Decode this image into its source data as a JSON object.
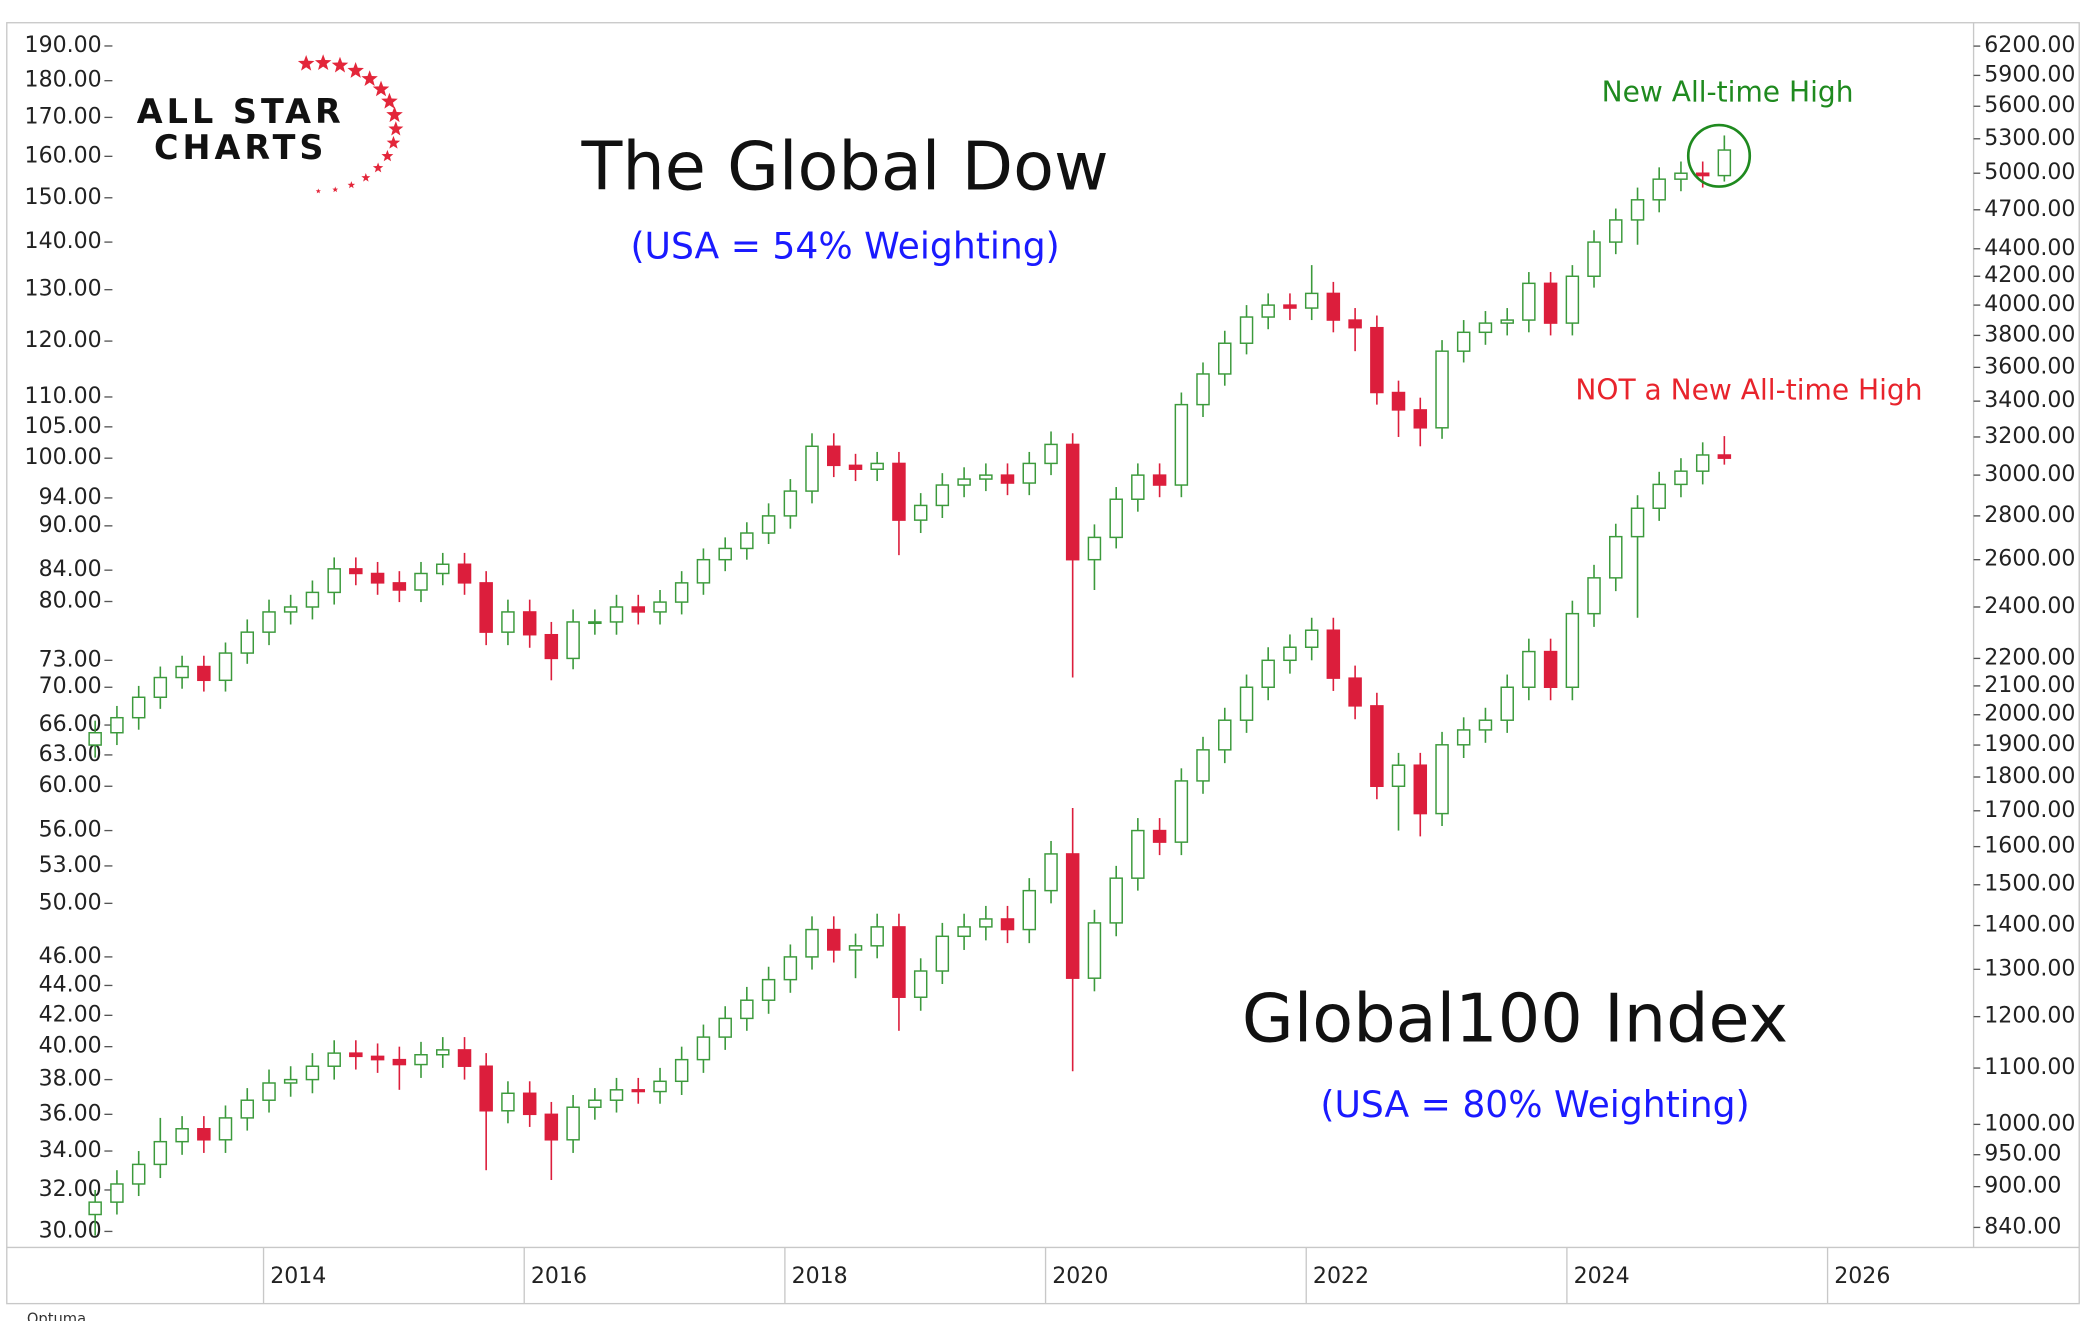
{
  "chart_data": {
    "type": "candlestick",
    "log_scale": true,
    "grid": false,
    "logo": [
      "ALL STAR",
      "CHARTS"
    ],
    "watermark": "Optuma",
    "annotations": [
      {
        "text": "New All-time High",
        "color": "#1f8a1f"
      },
      {
        "text": "NOT a New All-time High",
        "color": "#e8242c"
      }
    ],
    "x": [
      2012.708,
      2012.875,
      2013.042,
      2013.208,
      2013.375,
      2013.542,
      2013.708,
      2013.875,
      2014.042,
      2014.208,
      2014.375,
      2014.542,
      2014.708,
      2014.875,
      2015.042,
      2015.208,
      2015.375,
      2015.542,
      2015.708,
      2015.875,
      2016.042,
      2016.208,
      2016.375,
      2016.542,
      2016.708,
      2016.875,
      2017.042,
      2017.208,
      2017.375,
      2017.542,
      2017.708,
      2017.875,
      2018.042,
      2018.208,
      2018.375,
      2018.542,
      2018.708,
      2018.875,
      2019.042,
      2019.208,
      2019.375,
      2019.542,
      2019.708,
      2019.875,
      2020.042,
      2020.208,
      2020.375,
      2020.542,
      2020.708,
      2020.875,
      2021.042,
      2021.208,
      2021.375,
      2021.542,
      2021.708,
      2021.875,
      2022.042,
      2022.208,
      2022.375,
      2022.542,
      2022.708,
      2022.875,
      2023.042,
      2023.208,
      2023.375,
      2023.542,
      2023.708,
      2023.875,
      2024.042,
      2024.208,
      2024.375,
      2024.542,
      2024.708,
      2024.875,
      2025.042,
      2025.208
    ],
    "xlim": [
      2012.03,
      2027.11
    ],
    "xticks": [
      2014,
      2016,
      2018,
      2020,
      2022,
      2024,
      2026
    ],
    "ylim": [
      29.26,
      197
    ],
    "yticks": [
      {
        "value": 190,
        "label": "190.00"
      },
      {
        "value": 180,
        "label": "180.00"
      },
      {
        "value": 170,
        "label": "170.00"
      },
      {
        "value": 160,
        "label": "160.00"
      },
      {
        "value": 150,
        "label": "150.00"
      },
      {
        "value": 140,
        "label": "140.00"
      },
      {
        "value": 130,
        "label": "130.00"
      },
      {
        "value": 120,
        "label": "120.00"
      },
      {
        "value": 110,
        "label": "110.00"
      },
      {
        "value": 105,
        "label": "105.00"
      },
      {
        "value": 100,
        "label": "100.00"
      },
      {
        "value": 94,
        "label": "94.00"
      },
      {
        "value": 90,
        "label": "90.00"
      },
      {
        "value": 84,
        "label": "84.00"
      },
      {
        "value": 80,
        "label": "80.00"
      },
      {
        "value": 73,
        "label": "73.00"
      },
      {
        "value": 70,
        "label": "70.00"
      },
      {
        "value": 66,
        "label": "66.00"
      },
      {
        "value": 63,
        "label": "63.00"
      },
      {
        "value": 60,
        "label": "60.00"
      },
      {
        "value": 56,
        "label": "56.00"
      },
      {
        "value": 53,
        "label": "53.00"
      },
      {
        "value": 50,
        "label": "50.00"
      },
      {
        "value": 46,
        "label": "46.00"
      },
      {
        "value": 44,
        "label": "44.00"
      },
      {
        "value": 42,
        "label": "42.00"
      },
      {
        "value": 40,
        "label": "40.00"
      },
      {
        "value": 38,
        "label": "38.00"
      },
      {
        "value": 36,
        "label": "36.00"
      },
      {
        "value": 34,
        "label": "34.00"
      },
      {
        "value": 32,
        "label": "32.00"
      },
      {
        "value": 30,
        "label": "30.00"
      }
    ],
    "y2lim": [
      812,
      6450
    ],
    "y2ticks": [
      {
        "value": 6200,
        "label": "6200.00"
      },
      {
        "value": 5900,
        "label": "5900.00"
      },
      {
        "value": 5600,
        "label": "5600.00"
      },
      {
        "value": 5300,
        "label": "5300.00"
      },
      {
        "value": 5000,
        "label": "5000.00"
      },
      {
        "value": 4700,
        "label": "4700.00"
      },
      {
        "value": 4400,
        "label": "4400.00"
      },
      {
        "value": 4200,
        "label": "4200.00"
      },
      {
        "value": 4000,
        "label": "4000.00"
      },
      {
        "value": 3800,
        "label": "3800.00"
      },
      {
        "value": 3600,
        "label": "3600.00"
      },
      {
        "value": 3400,
        "label": "3400.00"
      },
      {
        "value": 3200,
        "label": "3200.00"
      },
      {
        "value": 3000,
        "label": "3000.00"
      },
      {
        "value": 2800,
        "label": "2800.00"
      },
      {
        "value": 2600,
        "label": "2600.00"
      },
      {
        "value": 2400,
        "label": "2400.00"
      },
      {
        "value": 2200,
        "label": "2200.00"
      },
      {
        "value": 2100,
        "label": "2100.00"
      },
      {
        "value": 2000,
        "label": "2000.00"
      },
      {
        "value": 1900,
        "label": "1900.00"
      },
      {
        "value": 1800,
        "label": "1800.00"
      },
      {
        "value": 1700,
        "label": "1700.00"
      },
      {
        "value": 1600,
        "label": "1600.00"
      },
      {
        "value": 1500,
        "label": "1500.00"
      },
      {
        "value": 1400,
        "label": "1400.00"
      },
      {
        "value": 1300,
        "label": "1300.00"
      },
      {
        "value": 1200,
        "label": "1200.00"
      },
      {
        "value": 1100,
        "label": "1100.00"
      },
      {
        "value": 1000,
        "label": "1000.00"
      },
      {
        "value": 950,
        "label": "950.00"
      },
      {
        "value": 900,
        "label": "900.00"
      },
      {
        "value": 840,
        "label": "840.00"
      }
    ],
    "up_color": "#3c9a3c",
    "down_color": "#dc1e3c",
    "series": [
      {
        "name": "The Global Dow",
        "annotation": "(USA = 54% Weighting)",
        "axis": "y2",
        "open": [
          1900,
          1940,
          1990,
          2060,
          2130,
          2170,
          2120,
          2220,
          2300,
          2380,
          2400,
          2460,
          2560,
          2540,
          2500,
          2470,
          2540,
          2580,
          2500,
          2300,
          2380,
          2290,
          2200,
          2340,
          2340,
          2400,
          2380,
          2420,
          2500,
          2600,
          2650,
          2720,
          2800,
          2920,
          3150,
          3050,
          3030,
          3060,
          2780,
          2850,
          2950,
          2980,
          3000,
          2960,
          3060,
          3160,
          2600,
          2700,
          2880,
          3000,
          2950,
          3380,
          3560,
          3750,
          3920,
          4000,
          3980,
          4080,
          3900,
          3850,
          3450,
          3350,
          3250,
          3700,
          3820,
          3880,
          3900,
          4150,
          3880,
          4200,
          4450,
          4620,
          4780,
          4950,
          5000,
          4980
        ],
        "high": [
          1980,
          2030,
          2100,
          2170,
          2210,
          2210,
          2260,
          2350,
          2430,
          2450,
          2510,
          2610,
          2610,
          2590,
          2550,
          2590,
          2630,
          2630,
          2550,
          2430,
          2430,
          2340,
          2390,
          2390,
          2450,
          2450,
          2470,
          2550,
          2650,
          2700,
          2770,
          2860,
          2980,
          3220,
          3220,
          3110,
          3120,
          3120,
          2910,
          3010,
          3040,
          3060,
          3060,
          3120,
          3230,
          3220,
          2760,
          2940,
          3060,
          3060,
          3450,
          3630,
          3830,
          4000,
          4080,
          4080,
          4280,
          4160,
          3980,
          3930,
          3520,
          3420,
          3770,
          3900,
          3960,
          3980,
          4230,
          4230,
          4280,
          4540,
          4710,
          4880,
          5050,
          5100,
          5100,
          5330
        ],
        "low": [
          1860,
          1900,
          1950,
          2020,
          2090,
          2080,
          2080,
          2180,
          2250,
          2330,
          2350,
          2410,
          2490,
          2450,
          2420,
          2420,
          2490,
          2450,
          2250,
          2250,
          2240,
          2120,
          2160,
          2290,
          2290,
          2330,
          2330,
          2370,
          2450,
          2550,
          2600,
          2670,
          2740,
          2860,
          2990,
          2970,
          2970,
          2620,
          2720,
          2790,
          2890,
          2920,
          2900,
          2900,
          3000,
          2130,
          2470,
          2650,
          2820,
          2890,
          2890,
          3310,
          3490,
          3680,
          3840,
          3900,
          3900,
          3820,
          3700,
          3380,
          3200,
          3150,
          3190,
          3630,
          3740,
          3800,
          3820,
          3800,
          3800,
          4120,
          4360,
          4430,
          4680,
          4850,
          4880,
          4930
        ],
        "close": [
          1940,
          1990,
          2060,
          2130,
          2170,
          2120,
          2220,
          2300,
          2380,
          2400,
          2460,
          2560,
          2540,
          2500,
          2470,
          2540,
          2580,
          2500,
          2300,
          2380,
          2290,
          2200,
          2340,
          2340,
          2400,
          2380,
          2420,
          2500,
          2600,
          2650,
          2720,
          2800,
          2920,
          3150,
          3050,
          3030,
          3060,
          2780,
          2850,
          2950,
          2980,
          3000,
          2960,
          3060,
          3160,
          2600,
          2700,
          2880,
          3000,
          2950,
          3380,
          3560,
          3750,
          3920,
          4000,
          3980,
          4080,
          3900,
          3850,
          3450,
          3350,
          3250,
          3700,
          3820,
          3880,
          3900,
          4150,
          3880,
          4200,
          4450,
          4620,
          4780,
          4950,
          5000,
          4980,
          5200
        ]
      },
      {
        "name": "Global100 Index",
        "annotation": "(USA = 80% Weighting)",
        "axis": "y",
        "open": [
          30.8,
          31.4,
          32.3,
          33.3,
          34.5,
          35.2,
          34.6,
          35.8,
          36.8,
          37.8,
          38.0,
          38.8,
          39.6,
          39.4,
          39.2,
          38.9,
          39.5,
          39.8,
          38.8,
          36.2,
          37.2,
          36.0,
          34.6,
          36.4,
          36.8,
          37.4,
          37.3,
          37.9,
          39.2,
          40.6,
          41.8,
          43.0,
          44.4,
          46.0,
          48.0,
          46.5,
          46.8,
          48.2,
          43.2,
          45.0,
          47.5,
          48.2,
          48.8,
          48.0,
          51.0,
          54.0,
          44.5,
          48.5,
          52.0,
          56.0,
          55.0,
          60.5,
          63.5,
          66.5,
          70.0,
          73.0,
          74.5,
          76.5,
          71.0,
          68.0,
          60.0,
          62.0,
          57.5,
          64.0,
          65.5,
          66.5,
          70.0,
          74.0,
          70.0,
          78.5,
          83.0,
          88.5,
          92.5,
          96.0,
          98.0,
          100.5
        ],
        "high": [
          32.0,
          33.0,
          34.0,
          35.8,
          35.9,
          35.9,
          36.5,
          37.5,
          38.6,
          38.8,
          39.6,
          40.4,
          40.4,
          40.2,
          40.0,
          40.3,
          40.6,
          40.6,
          39.6,
          37.9,
          37.9,
          36.7,
          37.1,
          37.5,
          38.1,
          38.1,
          38.7,
          40.0,
          41.4,
          42.6,
          43.9,
          45.3,
          46.9,
          49.0,
          49.0,
          47.7,
          49.2,
          49.2,
          45.9,
          48.5,
          49.2,
          49.8,
          49.8,
          52.0,
          55.1,
          58.0,
          49.5,
          53.0,
          57.1,
          57.1,
          61.7,
          64.8,
          67.8,
          71.4,
          74.5,
          76.0,
          78.0,
          78.0,
          72.4,
          69.4,
          63.2,
          63.2,
          65.3,
          66.8,
          67.8,
          71.4,
          75.5,
          75.5,
          80.1,
          84.7,
          90.3,
          94.4,
          97.9,
          100.0,
          102.5,
          103.5
        ],
        "low": [
          29.8,
          30.8,
          31.7,
          32.6,
          33.8,
          33.9,
          33.9,
          35.1,
          36.1,
          37.0,
          37.2,
          38.0,
          38.6,
          38.4,
          37.4,
          38.1,
          38.7,
          38.0,
          33.0,
          35.5,
          35.3,
          32.5,
          33.9,
          35.7,
          36.1,
          36.6,
          36.6,
          37.1,
          38.4,
          39.8,
          41.0,
          42.1,
          43.5,
          45.1,
          45.6,
          44.5,
          45.9,
          41.0,
          42.3,
          44.1,
          46.5,
          47.2,
          47.0,
          47.0,
          50.0,
          38.5,
          43.6,
          47.5,
          51.0,
          53.9,
          53.9,
          59.3,
          62.2,
          65.2,
          68.6,
          71.5,
          73.0,
          69.6,
          66.6,
          58.8,
          56.0,
          55.5,
          56.4,
          62.7,
          64.2,
          65.2,
          68.6,
          68.6,
          68.6,
          76.9,
          81.3,
          78.0,
          90.7,
          94.1,
          96.0,
          99.0
        ],
        "close": [
          31.4,
          32.3,
          33.3,
          34.5,
          35.2,
          34.6,
          35.8,
          36.8,
          37.8,
          38.0,
          38.8,
          39.6,
          39.4,
          39.2,
          38.9,
          39.5,
          39.8,
          38.8,
          36.2,
          37.2,
          36.0,
          34.6,
          36.4,
          36.8,
          37.4,
          37.3,
          37.9,
          39.2,
          40.6,
          41.8,
          43.0,
          44.4,
          46.0,
          48.0,
          46.5,
          46.8,
          48.2,
          43.2,
          45.0,
          47.5,
          48.2,
          48.8,
          48.0,
          51.0,
          54.0,
          44.5,
          48.5,
          52.0,
          56.0,
          55.0,
          60.5,
          63.5,
          66.5,
          70.0,
          73.0,
          74.5,
          76.5,
          71.0,
          68.0,
          60.0,
          62.0,
          57.5,
          64.0,
          65.5,
          66.5,
          70.0,
          74.0,
          70.0,
          78.5,
          83.0,
          88.5,
          92.5,
          96.0,
          98.0,
          100.5,
          100.0
        ]
      }
    ]
  }
}
